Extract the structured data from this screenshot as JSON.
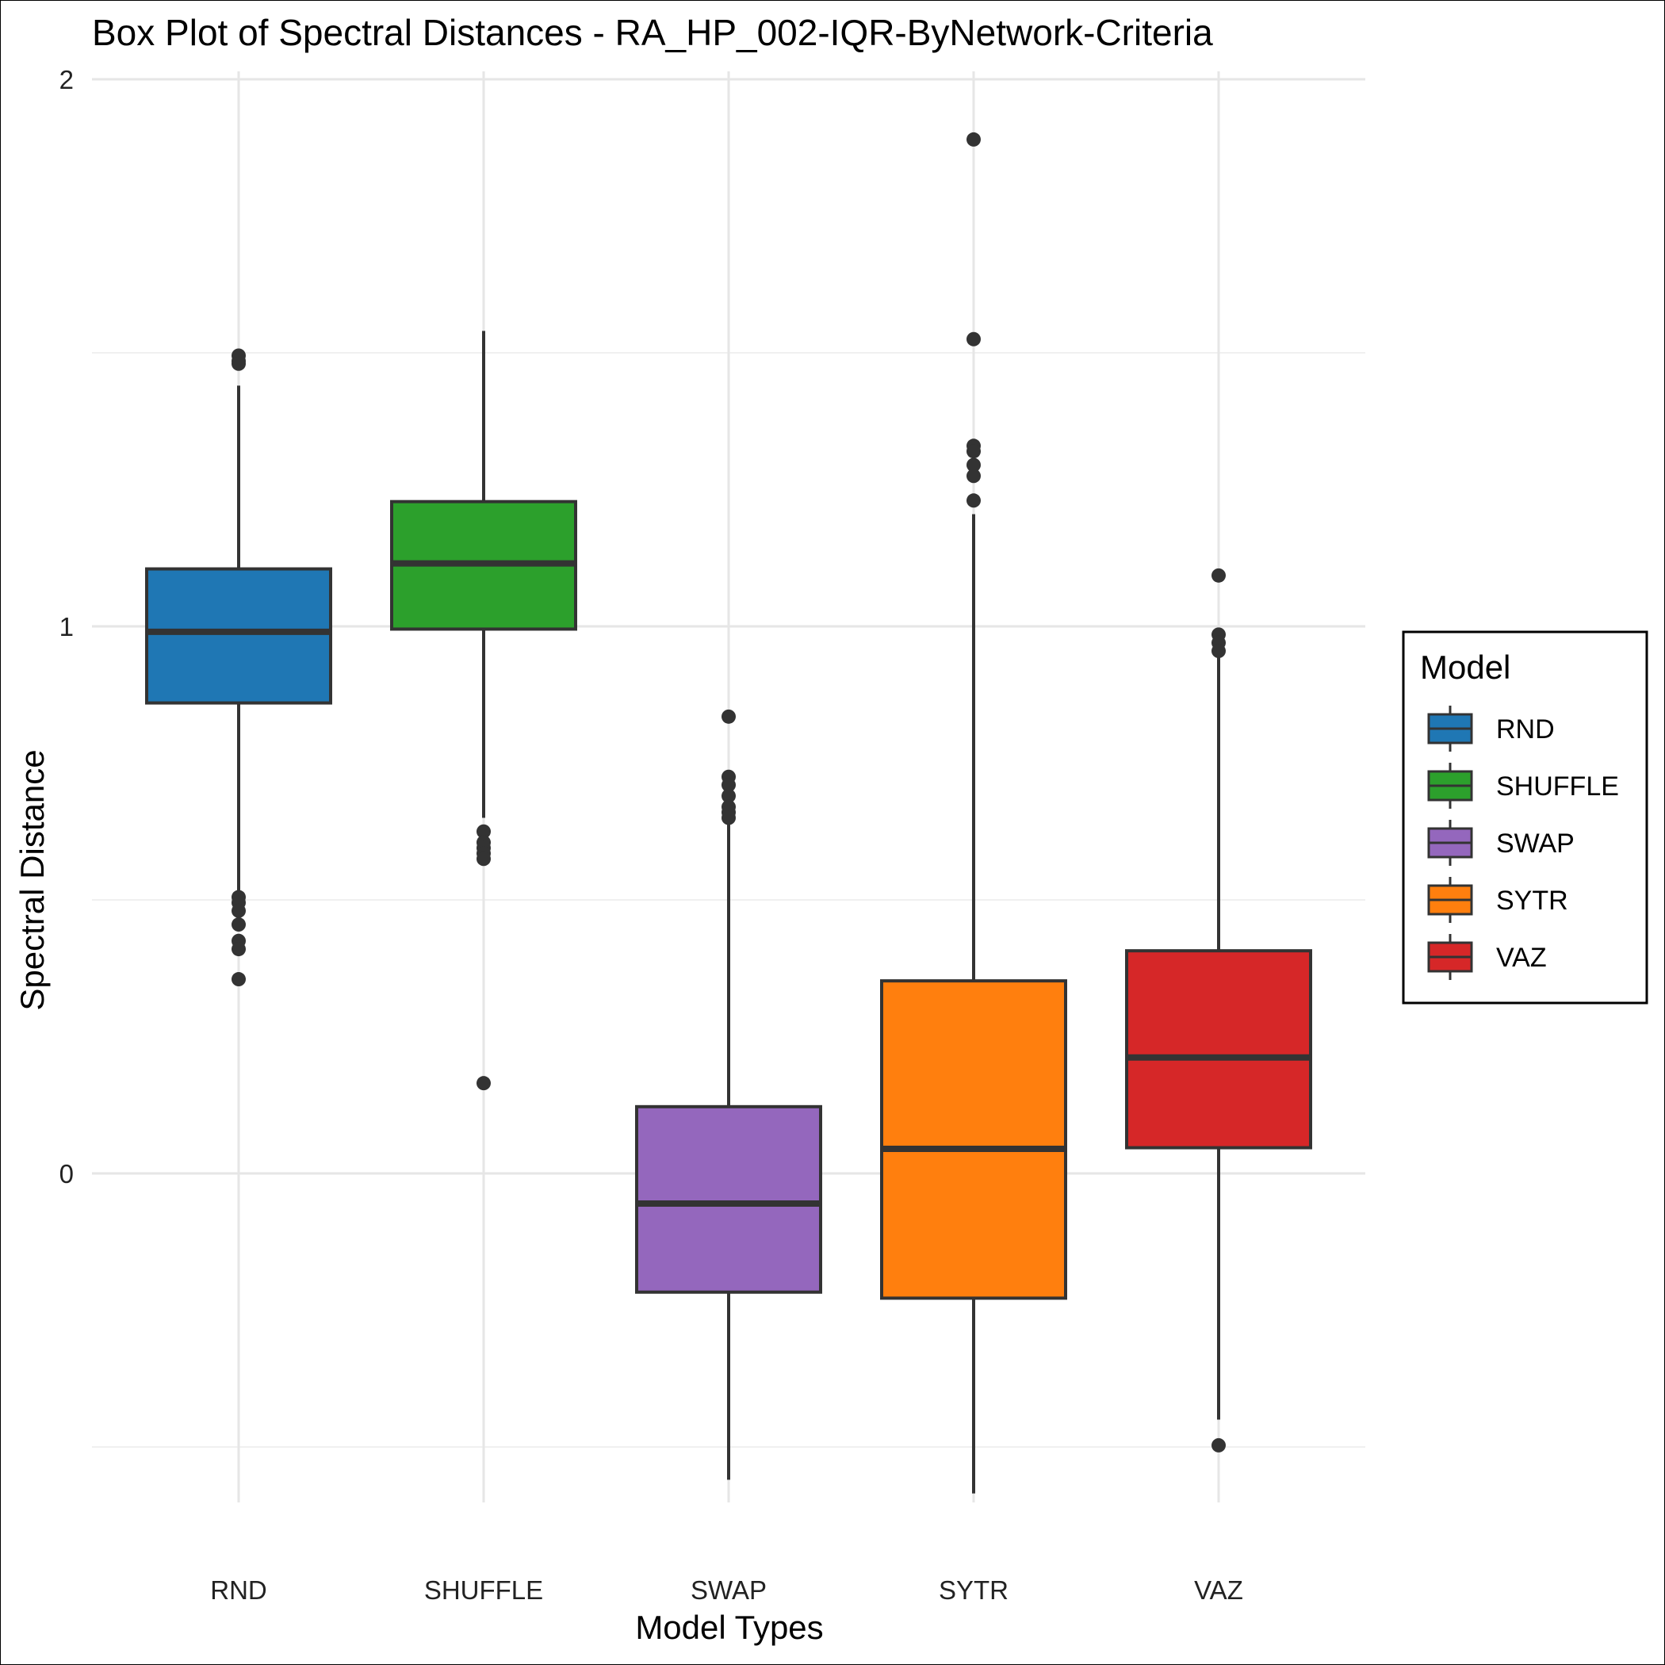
{
  "chart_data": {
    "type": "box",
    "title": "Box Plot of Spectral Distances -  RA_HP_002-IQR-ByNetwork-Criteria",
    "xlabel": "Model Types",
    "ylabel": "Spectral Distance",
    "ylim": [
      -0.6,
      2.0
    ],
    "yticks": [
      {
        "value": 0,
        "label": "0"
      },
      {
        "value": 1,
        "label": "1"
      },
      {
        "value": 2,
        "label": "2"
      }
    ],
    "y_minor_gridlines": [
      -0.5,
      0.5,
      1.5
    ],
    "grid": true,
    "legend": {
      "title": "Model",
      "placement": "right"
    },
    "categories": [
      "RND",
      "SHUFFLE",
      "SWAP",
      "SYTR",
      "VAZ"
    ],
    "series": [
      {
        "name": "RND",
        "color": "#1f77b4",
        "whisker_low": 0.48,
        "q1": 0.86,
        "median": 0.99,
        "q3": 1.105,
        "whisker_high": 1.44,
        "outliers": [
          1.495,
          1.485,
          1.48,
          0.505,
          0.495,
          0.48,
          0.455,
          0.425,
          0.41,
          0.355
        ]
      },
      {
        "name": "SHUFFLE",
        "color": "#2ca02c",
        "whisker_low": 0.65,
        "q1": 0.995,
        "median": 1.115,
        "q3": 1.228,
        "whisker_high": 1.54,
        "outliers": [
          0.625,
          0.605,
          0.595,
          0.585,
          0.575,
          0.165
        ]
      },
      {
        "name": "SWAP",
        "color": "#9467bd",
        "whisker_low": -0.56,
        "q1": -0.217,
        "median": -0.055,
        "q3": 0.122,
        "whisker_high": 0.64,
        "outliers": [
          0.835,
          0.725,
          0.71,
          0.69,
          0.67,
          0.66,
          0.65
        ]
      },
      {
        "name": "SYTR",
        "color": "#ff7f0e",
        "whisker_low": -0.585,
        "q1": -0.228,
        "median": 0.045,
        "q3": 0.352,
        "whisker_high": 1.205,
        "outliers": [
          1.89,
          1.525,
          1.33,
          1.32,
          1.295,
          1.275,
          1.23
        ]
      },
      {
        "name": "VAZ",
        "color": "#d62728",
        "whisker_low": -0.45,
        "q1": 0.047,
        "median": 0.212,
        "q3": 0.407,
        "whisker_high": 0.955,
        "outliers": [
          1.093,
          0.985,
          0.97,
          0.955,
          -0.497
        ]
      }
    ]
  }
}
